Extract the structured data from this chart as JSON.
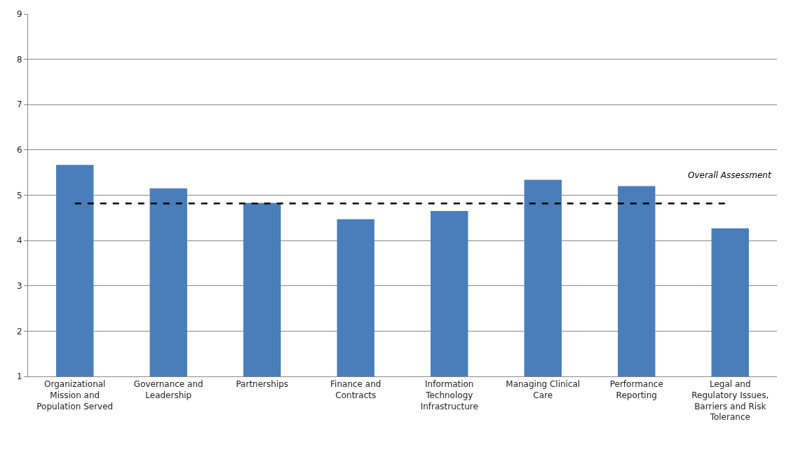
{
  "chart_data": {
    "type": "bar",
    "categories": [
      "Organizational Mission and Population Served",
      "Governance and Leadership",
      "Partnerships",
      "Finance and Contracts",
      "Information Technology Infrastructure",
      "Managing Clinical Care",
      "Performance Reporting",
      "Legal and Regulatory Issues, Barriers and Risk Tolerance"
    ],
    "values": [
      5.67,
      5.15,
      4.83,
      4.47,
      4.65,
      5.34,
      5.2,
      4.27
    ],
    "color": "#4a7ebb",
    "ylim": [
      1,
      9
    ],
    "yticks": [
      1,
      2,
      3,
      4,
      5,
      6,
      7,
      8,
      9
    ],
    "grid": "y",
    "ref_lines": [
      {
        "axis": "y",
        "value": 4.82,
        "label": "Overall Assessment",
        "color": "#000000",
        "line_style": "dashed"
      }
    ]
  }
}
